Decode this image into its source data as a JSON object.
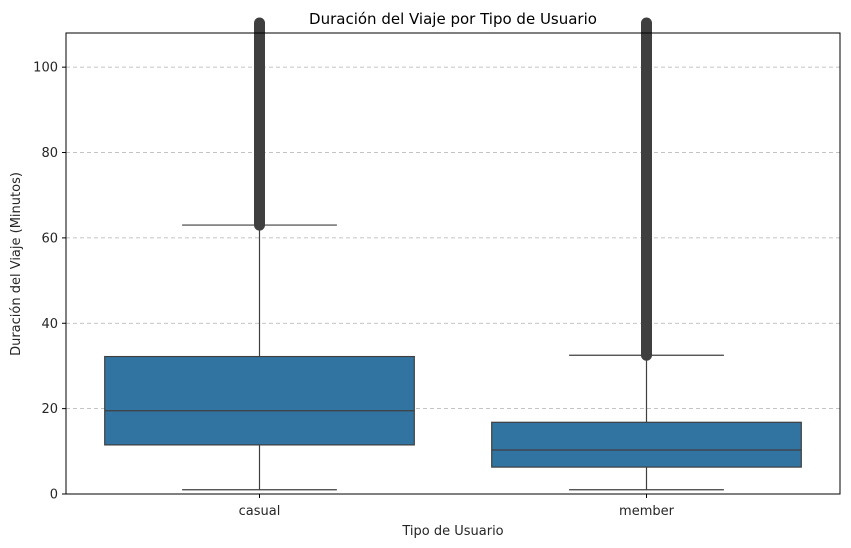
{
  "chart_data": {
    "type": "box",
    "title": "Duración del Viaje por Tipo de Usuario",
    "xlabel": "Tipo de Usuario",
    "ylabel": "Duración del Viaje (Minutos)",
    "ylim": [
      0,
      108
    ],
    "yticks": [
      0,
      20,
      40,
      60,
      80,
      100
    ],
    "grid": "horizontal-dashed",
    "box_color": "#3274a1",
    "line_color": "#3f3f3f",
    "categories": [
      "casual",
      "member"
    ],
    "boxes": [
      {
        "category": "casual",
        "whisker_low": 1,
        "q1": 11.5,
        "median": 19.5,
        "q3": 32.2,
        "whisker_high": 63,
        "outliers_from": 63,
        "outliers_to": 108
      },
      {
        "category": "member",
        "whisker_low": 1,
        "q1": 6.3,
        "median": 10.3,
        "q3": 16.8,
        "whisker_high": 32.5,
        "outliers_from": 32.5,
        "outliers_to": 108
      }
    ]
  }
}
